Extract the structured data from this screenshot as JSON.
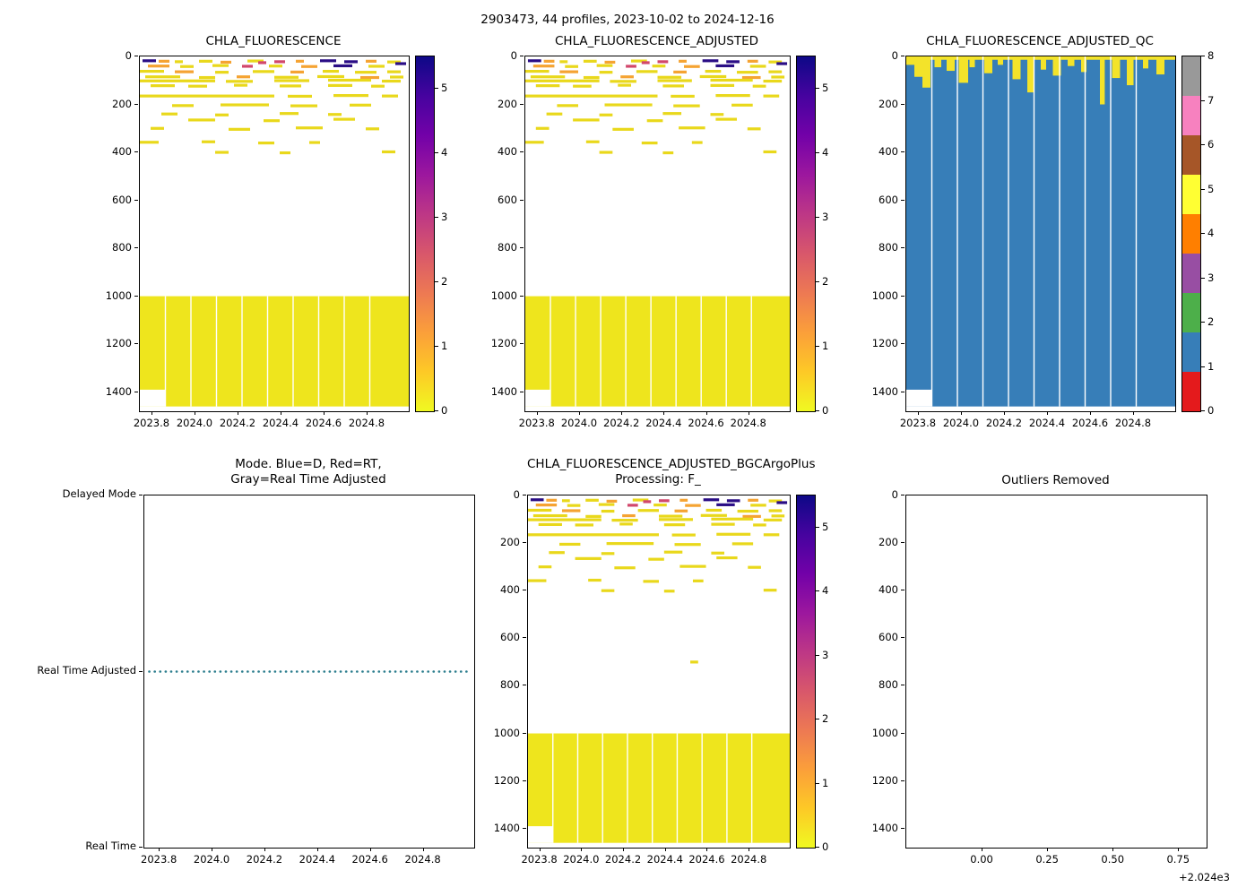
{
  "figure": {
    "title": "2903473, 44 profiles, 2023-10-02 to 2024-12-16"
  },
  "colors": {
    "background": "#ffffff",
    "heat_yellow": "#eee51d",
    "qc_blue": "#377eb8",
    "qc_yellow": "#f3e32a",
    "mode_line": "#2d7e8e",
    "plasma_stops_top_to_bottom": [
      "#0d0887",
      "#46039f",
      "#7201a8",
      "#9c179e",
      "#bd3786",
      "#d8576b",
      "#ed7953",
      "#fb9f3a",
      "#fdc926",
      "#f0f921"
    ],
    "qc_colors_bottom_to_top": [
      "#e41a1c",
      "#377eb8",
      "#4daf4a",
      "#984ea3",
      "#ff7f00",
      "#ffff33",
      "#a65628",
      "#f781bf",
      "#999999"
    ],
    "mark_colors": {
      "y": "#e9d81b",
      "o": "#f5a332",
      "n": "#2a0d85",
      "r": "#d1476c"
    }
  },
  "chart_data": [
    {
      "type": "heatmap",
      "title": "CHLA_FLUORESCENCE",
      "x_range": [
        2023.7417,
        2024.9917
      ],
      "x_tick_values": [
        2023.8,
        2024.0,
        2024.2,
        2024.4,
        2024.6,
        2024.8
      ],
      "x_tick_labels": [
        "2023.8",
        "2024.0",
        "2024.2",
        "2024.4",
        "2024.6",
        "2024.8"
      ],
      "y_range": [
        0,
        1480
      ],
      "y_tick_values": [
        0,
        200,
        400,
        600,
        800,
        1000,
        1200,
        1400
      ],
      "y_tick_labels": [
        "0",
        "200",
        "400",
        "600",
        "800",
        "1000",
        "1200",
        "1400"
      ],
      "colorbar": {
        "range": [
          0,
          5.5
        ],
        "tick_values": [
          0,
          1,
          2,
          3,
          4,
          5
        ],
        "tick_labels": [
          "0",
          "1",
          "2",
          "3",
          "4",
          "5"
        ]
      },
      "deep_block": {
        "depth_top": 1000,
        "depth_bottom": 1460
      },
      "white_notch": {
        "x0": 0,
        "x1": 0.095,
        "depth_top": 1390,
        "depth_bottom": 1460
      },
      "column_gaps": [
        0.095,
        0.19,
        0.285,
        0.38,
        0.475,
        0.57,
        0.665,
        0.76,
        0.855
      ],
      "marks_ref": "shared"
    },
    {
      "type": "heatmap",
      "title": "CHLA_FLUORESCENCE_ADJUSTED",
      "x_range": [
        2023.7417,
        2024.9917
      ],
      "x_tick_values": [
        2023.8,
        2024.0,
        2024.2,
        2024.4,
        2024.6,
        2024.8
      ],
      "x_tick_labels": [
        "2023.8",
        "2024.0",
        "2024.2",
        "2024.4",
        "2024.6",
        "2024.8"
      ],
      "y_range": [
        0,
        1480
      ],
      "y_tick_values": [
        0,
        200,
        400,
        600,
        800,
        1000,
        1200,
        1400
      ],
      "y_tick_labels": [
        "0",
        "200",
        "400",
        "600",
        "800",
        "1000",
        "1200",
        "1400"
      ],
      "colorbar": {
        "range": [
          0,
          5.5
        ],
        "tick_values": [
          0,
          1,
          2,
          3,
          4,
          5
        ],
        "tick_labels": [
          "0",
          "1",
          "2",
          "3",
          "4",
          "5"
        ]
      },
      "deep_block": {
        "depth_top": 1000,
        "depth_bottom": 1460
      },
      "white_notch": {
        "x0": 0,
        "x1": 0.095,
        "depth_top": 1390,
        "depth_bottom": 1460
      },
      "column_gaps": [
        0.095,
        0.19,
        0.285,
        0.38,
        0.475,
        0.57,
        0.665,
        0.76,
        0.855
      ],
      "marks_ref": "shared"
    },
    {
      "type": "qc_heatmap",
      "title": "CHLA_FLUORESCENCE_ADJUSTED_QC",
      "x_range": [
        2023.7417,
        2024.9917
      ],
      "x_tick_values": [
        2023.8,
        2024.0,
        2024.2,
        2024.4,
        2024.6,
        2024.8
      ],
      "x_tick_labels": [
        "2023.8",
        "2024.0",
        "2024.2",
        "2024.4",
        "2024.6",
        "2024.8"
      ],
      "y_range": [
        0,
        1480
      ],
      "y_tick_values": [
        0,
        200,
        400,
        600,
        800,
        1000,
        1200,
        1400
      ],
      "y_tick_labels": [
        "0",
        "200",
        "400",
        "600",
        "800",
        "1000",
        "1200",
        "1400"
      ],
      "colorbar": {
        "range": [
          0,
          8
        ],
        "tick_values": [
          0,
          1,
          2,
          3,
          4,
          5,
          6,
          7,
          8
        ],
        "tick_labels": [
          "0",
          "1",
          "2",
          "3",
          "4",
          "5",
          "6",
          "7",
          "8"
        ]
      },
      "base_fill_value": 1,
      "base_fill_depth": 1460,
      "top_strip_depth": 14,
      "caps_value": 5,
      "caps": [
        [
          0.0,
          0.03,
          35
        ],
        [
          0.03,
          0.03,
          85
        ],
        [
          0.06,
          0.03,
          130
        ],
        [
          0.105,
          0.025,
          45
        ],
        [
          0.15,
          0.03,
          60
        ],
        [
          0.195,
          0.035,
          110
        ],
        [
          0.235,
          0.02,
          45
        ],
        [
          0.29,
          0.03,
          70
        ],
        [
          0.34,
          0.02,
          35
        ],
        [
          0.395,
          0.03,
          95
        ],
        [
          0.45,
          0.025,
          150
        ],
        [
          0.5,
          0.02,
          55
        ],
        [
          0.545,
          0.03,
          80
        ],
        [
          0.6,
          0.025,
          40
        ],
        [
          0.65,
          0.02,
          65
        ],
        [
          0.72,
          0.018,
          200
        ],
        [
          0.765,
          0.03,
          90
        ],
        [
          0.82,
          0.025,
          120
        ],
        [
          0.88,
          0.02,
          50
        ],
        [
          0.93,
          0.03,
          75
        ]
      ],
      "column_gaps": [
        0.095,
        0.19,
        0.285,
        0.38,
        0.475,
        0.57,
        0.665,
        0.76,
        0.855
      ],
      "white_notch": {
        "x0": 0,
        "x1": 0.095,
        "depth_top": 1390,
        "depth_bottom": 1460
      }
    },
    {
      "type": "mode_lines",
      "title_line1": "Mode. Blue=D, Red=RT,",
      "title_line2": "Gray=Real Time Adjusted",
      "x_range": [
        2023.7417,
        2024.9917
      ],
      "x_tick_values": [
        2023.8,
        2024.0,
        2024.2,
        2024.4,
        2024.6,
        2024.8
      ],
      "x_tick_labels": [
        "2023.8",
        "2024.0",
        "2024.2",
        "2024.4",
        "2024.6",
        "2024.8"
      ],
      "y_categories": [
        "Delayed Mode",
        "Real Time Adjusted",
        "Real Time"
      ],
      "dotted_line": {
        "category": "Real Time Adjusted",
        "x0": 0.015,
        "x1": 0.985
      }
    },
    {
      "type": "heatmap",
      "title_line1": "CHLA_FLUORESCENCE_ADJUSTED_BGCArgoPlus",
      "title_line2": "Processing: F_",
      "x_range": [
        2023.7417,
        2024.9917
      ],
      "x_tick_values": [
        2023.8,
        2024.0,
        2024.2,
        2024.4,
        2024.6,
        2024.8
      ],
      "x_tick_labels": [
        "2023.8",
        "2024.0",
        "2024.2",
        "2024.4",
        "2024.6",
        "2024.8"
      ],
      "y_range": [
        0,
        1480
      ],
      "y_tick_values": [
        0,
        200,
        400,
        600,
        800,
        1000,
        1200,
        1400
      ],
      "y_tick_labels": [
        "0",
        "200",
        "400",
        "600",
        "800",
        "1000",
        "1200",
        "1400"
      ],
      "colorbar": {
        "range": [
          0,
          5.5
        ],
        "tick_values": [
          0,
          1,
          2,
          3,
          4,
          5
        ],
        "tick_labels": [
          "0",
          "1",
          "2",
          "3",
          "4",
          "5"
        ]
      },
      "deep_block": {
        "depth_top": 1000,
        "depth_bottom": 1460
      },
      "white_notch": {
        "x0": 0,
        "x1": 0.095,
        "depth_top": 1390,
        "depth_bottom": 1460
      },
      "column_gaps": [
        0.095,
        0.19,
        0.285,
        0.38,
        0.475,
        0.57,
        0.665,
        0.76,
        0.855
      ],
      "marks_ref": "shared",
      "extra_marks": [
        [
          0.62,
          700,
          0.03,
          "y"
        ]
      ]
    },
    {
      "type": "empty",
      "title": "Outliers Removed",
      "x_range": [
        2023.709,
        2024.855
      ],
      "x_tick_values": [
        2024.0,
        2024.25,
        2024.5,
        2024.75
      ],
      "x_tick_labels": [
        "0.00",
        "0.25",
        "0.50",
        "0.75"
      ],
      "x_offset_label": "+2.024e3",
      "y_range": [
        0,
        1480
      ],
      "y_tick_values": [
        0,
        200,
        400,
        600,
        800,
        1000,
        1200,
        1400
      ],
      "y_tick_labels": [
        "0",
        "200",
        "400",
        "600",
        "800",
        "1000",
        "1200",
        "1400"
      ]
    }
  ],
  "heatmap_marks": [
    [
      0.01,
      18,
      0.05,
      "n"
    ],
    [
      0.07,
      20,
      0.04,
      "o"
    ],
    [
      0.13,
      22,
      0.03,
      "y"
    ],
    [
      0.22,
      20,
      0.05,
      "y"
    ],
    [
      0.3,
      24,
      0.04,
      "o"
    ],
    [
      0.4,
      19,
      0.06,
      "y"
    ],
    [
      0.44,
      26,
      0.03,
      "r"
    ],
    [
      0.5,
      22,
      0.04,
      "r"
    ],
    [
      0.58,
      20,
      0.03,
      "o"
    ],
    [
      0.67,
      18,
      0.06,
      "n"
    ],
    [
      0.76,
      22,
      0.05,
      "n"
    ],
    [
      0.84,
      20,
      0.04,
      "o"
    ],
    [
      0.92,
      23,
      0.05,
      "y"
    ],
    [
      0.95,
      30,
      0.04,
      "n"
    ],
    [
      0.03,
      40,
      0.08,
      "o"
    ],
    [
      0.15,
      42,
      0.05,
      "y"
    ],
    [
      0.27,
      38,
      0.06,
      "y"
    ],
    [
      0.38,
      41,
      0.04,
      "r"
    ],
    [
      0.48,
      40,
      0.05,
      "y"
    ],
    [
      0.6,
      42,
      0.06,
      "o"
    ],
    [
      0.72,
      39,
      0.07,
      "n"
    ],
    [
      0.85,
      41,
      0.06,
      "y"
    ],
    [
      0.0,
      62,
      0.09,
      "y"
    ],
    [
      0.13,
      64,
      0.07,
      "o"
    ],
    [
      0.28,
      66,
      0.05,
      "y"
    ],
    [
      0.42,
      63,
      0.08,
      "y"
    ],
    [
      0.56,
      65,
      0.05,
      "o"
    ],
    [
      0.68,
      62,
      0.06,
      "y"
    ],
    [
      0.8,
      66,
      0.08,
      "y"
    ],
    [
      0.92,
      64,
      0.05,
      "y"
    ],
    [
      0.02,
      85,
      0.13,
      "y"
    ],
    [
      0.22,
      88,
      0.06,
      "y"
    ],
    [
      0.36,
      85,
      0.05,
      "o"
    ],
    [
      0.5,
      87,
      0.09,
      "y"
    ],
    [
      0.66,
      84,
      0.1,
      "y"
    ],
    [
      0.82,
      88,
      0.07,
      "o"
    ],
    [
      0.93,
      86,
      0.05,
      "y"
    ],
    [
      0.0,
      102,
      0.28,
      "y"
    ],
    [
      0.32,
      104,
      0.1,
      "y"
    ],
    [
      0.5,
      101,
      0.13,
      "y"
    ],
    [
      0.7,
      99,
      0.16,
      "y"
    ],
    [
      0.9,
      103,
      0.07,
      "y"
    ],
    [
      0.04,
      122,
      0.09,
      "y"
    ],
    [
      0.18,
      124,
      0.07,
      "y"
    ],
    [
      0.35,
      120,
      0.05,
      "y"
    ],
    [
      0.52,
      123,
      0.08,
      "y"
    ],
    [
      0.7,
      121,
      0.09,
      "y"
    ],
    [
      0.86,
      124,
      0.05,
      "y"
    ],
    [
      0.0,
      165,
      0.5,
      "y"
    ],
    [
      0.55,
      166,
      0.09,
      "y"
    ],
    [
      0.72,
      163,
      0.13,
      "y"
    ],
    [
      0.9,
      165,
      0.06,
      "y"
    ],
    [
      0.12,
      205,
      0.08,
      "y"
    ],
    [
      0.3,
      202,
      0.18,
      "y"
    ],
    [
      0.56,
      206,
      0.1,
      "y"
    ],
    [
      0.78,
      203,
      0.08,
      "y"
    ],
    [
      0.08,
      240,
      0.06,
      "y"
    ],
    [
      0.28,
      244,
      0.05,
      "y"
    ],
    [
      0.52,
      238,
      0.07,
      "y"
    ],
    [
      0.7,
      242,
      0.05,
      "y"
    ],
    [
      0.18,
      265,
      0.1,
      "y"
    ],
    [
      0.46,
      268,
      0.06,
      "y"
    ],
    [
      0.72,
      262,
      0.08,
      "y"
    ],
    [
      0.04,
      300,
      0.05,
      "y"
    ],
    [
      0.33,
      304,
      0.08,
      "y"
    ],
    [
      0.58,
      298,
      0.1,
      "y"
    ],
    [
      0.84,
      302,
      0.05,
      "y"
    ],
    [
      0.0,
      358,
      0.07,
      "y"
    ],
    [
      0.23,
      356,
      0.05,
      "y"
    ],
    [
      0.44,
      361,
      0.06,
      "y"
    ],
    [
      0.63,
      359,
      0.04,
      "y"
    ],
    [
      0.28,
      400,
      0.05,
      "y"
    ],
    [
      0.52,
      402,
      0.04,
      "y"
    ],
    [
      0.9,
      398,
      0.05,
      "y"
    ]
  ]
}
